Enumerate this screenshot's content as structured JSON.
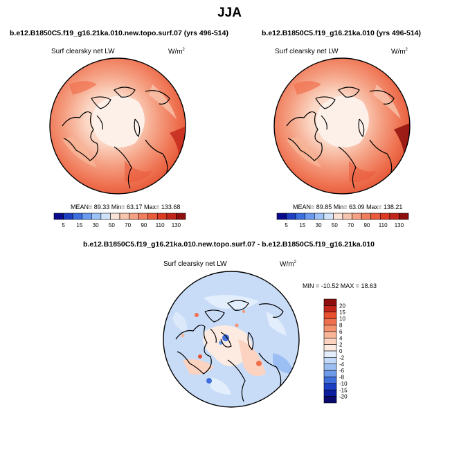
{
  "season": "JJA",
  "panels": [
    {
      "title": "b.e12.B1850C5.f19_g16.21ka.010.new.topo.surf.07 (yrs 496-514)",
      "variable": "Surf clearsky net LW",
      "units_base": "W/m",
      "units_exp": "2",
      "stats": "MEAN=  89.33  Min=  63.17  Max= 133.68"
    },
    {
      "title": "b.e12.B1850C5.f19_g16.21ka.010 (yrs 496-514)",
      "variable": "Surf clearsky net LW",
      "units_base": "W/m",
      "units_exp": "2",
      "stats": "MEAN=  89.85  Min=  63.09  Max= 138.21"
    },
    {
      "title": "b.e12.B1850C5.f19_g16.21ka.010.new.topo.surf.07 - b.e12.B1850C5.f19_g16.21ka.010",
      "variable": "Surf clearsky net LW",
      "units_base": "W/m",
      "units_exp": "2",
      "stats": "MIN = -10.52 MAX =  18.63"
    }
  ],
  "colorbar_abs": {
    "labels": [
      "5",
      "15",
      "30",
      "50",
      "70",
      "90",
      "110",
      "130"
    ],
    "colors": [
      "#0a0a8c",
      "#1c3fc4",
      "#3b6fe0",
      "#6a9bf0",
      "#9cc2f7",
      "#cfe3fb",
      "#fbe2d6",
      "#f8c4ad",
      "#f5a184",
      "#f07e5c",
      "#ea5a3c",
      "#dd3a22",
      "#c2261a",
      "#8e0f0d"
    ]
  },
  "colorbar_diff": {
    "labels": [
      "20",
      "15",
      "10",
      "8",
      "6",
      "4",
      "2",
      "0",
      "-2",
      "-4",
      "-6",
      "-8",
      "-10",
      "-15",
      "-20"
    ],
    "colors": [
      "#8e0f0d",
      "#c2261a",
      "#e8502f",
      "#f0704e",
      "#f5936f",
      "#f8b597",
      "#fbd3c0",
      "#fdebe2",
      "#e2eefc",
      "#c2d9f8",
      "#9cbff3",
      "#6d9bea",
      "#3f6fdc",
      "#1c3fc4",
      "#0b1f9e",
      "#0a0a6e"
    ]
  }
}
